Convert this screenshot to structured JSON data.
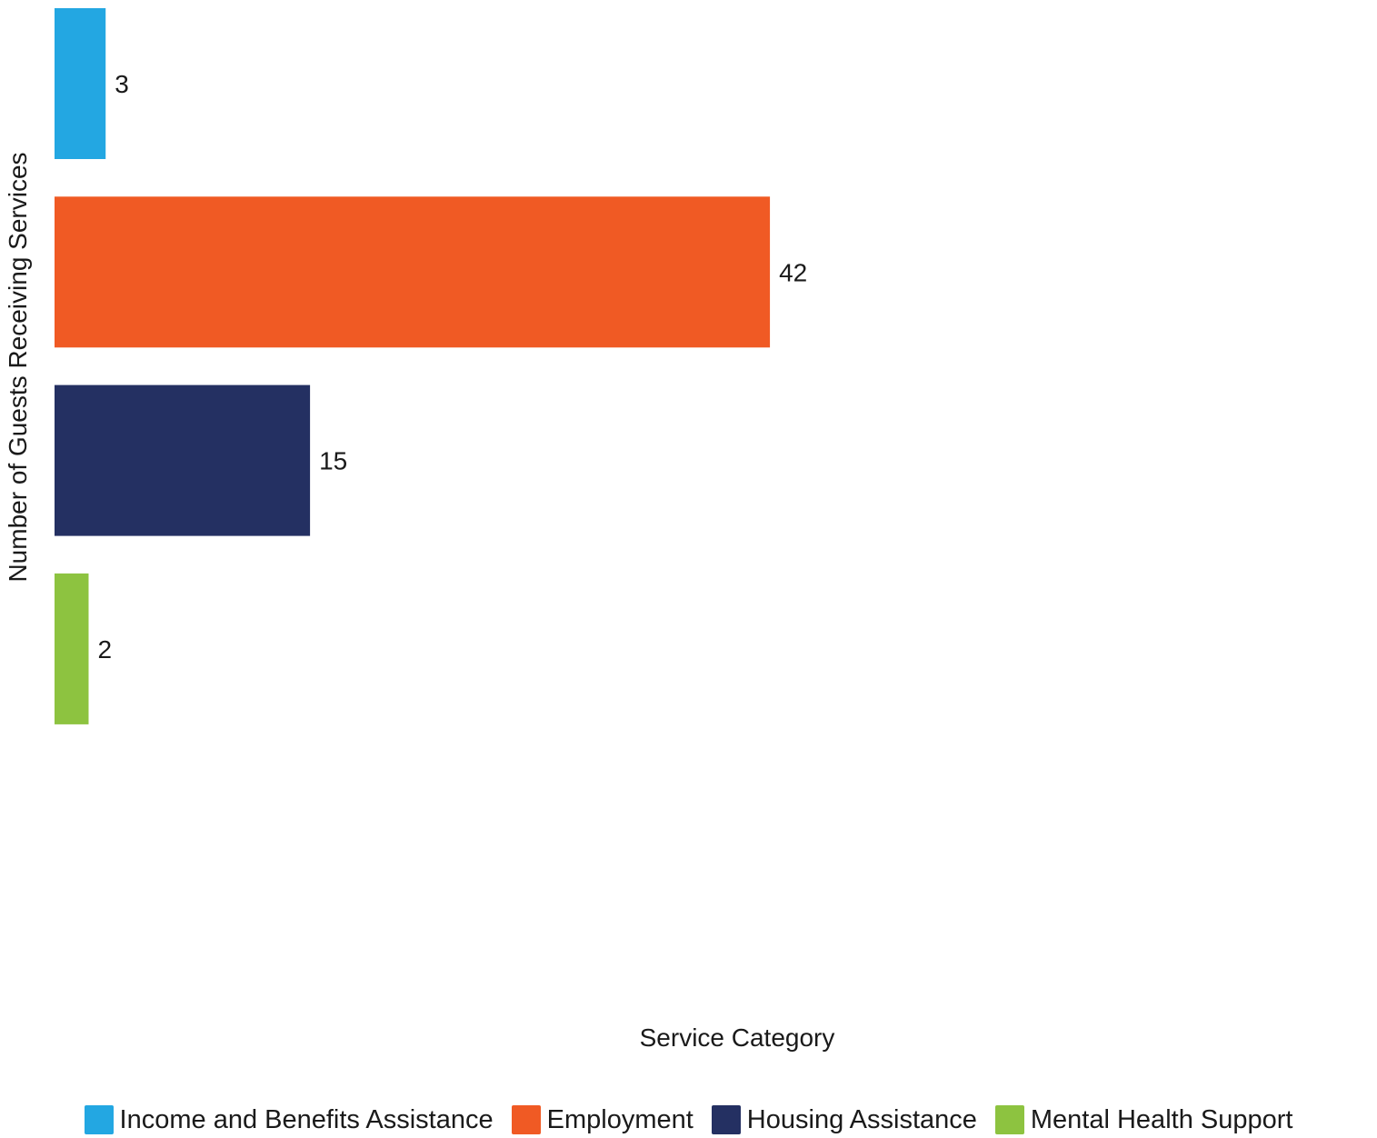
{
  "chart_data": {
    "type": "bar",
    "orientation": "horizontal",
    "categories": [
      "Income and Benefits Assistance",
      "Employment",
      "Housing Assistance",
      "Mental Health Support"
    ],
    "values": [
      3,
      42,
      15,
      2
    ],
    "colors": [
      "#23a7e2",
      "#f05a24",
      "#243062",
      "#8dc340"
    ],
    "data_labels": [
      "3",
      "42",
      "15",
      "2"
    ],
    "title": "",
    "xlabel": "Service Category",
    "ylabel": "Number of Guests Receiving Services",
    "xlim": [
      0,
      42
    ],
    "grid": false,
    "legend_position": "bottom"
  }
}
